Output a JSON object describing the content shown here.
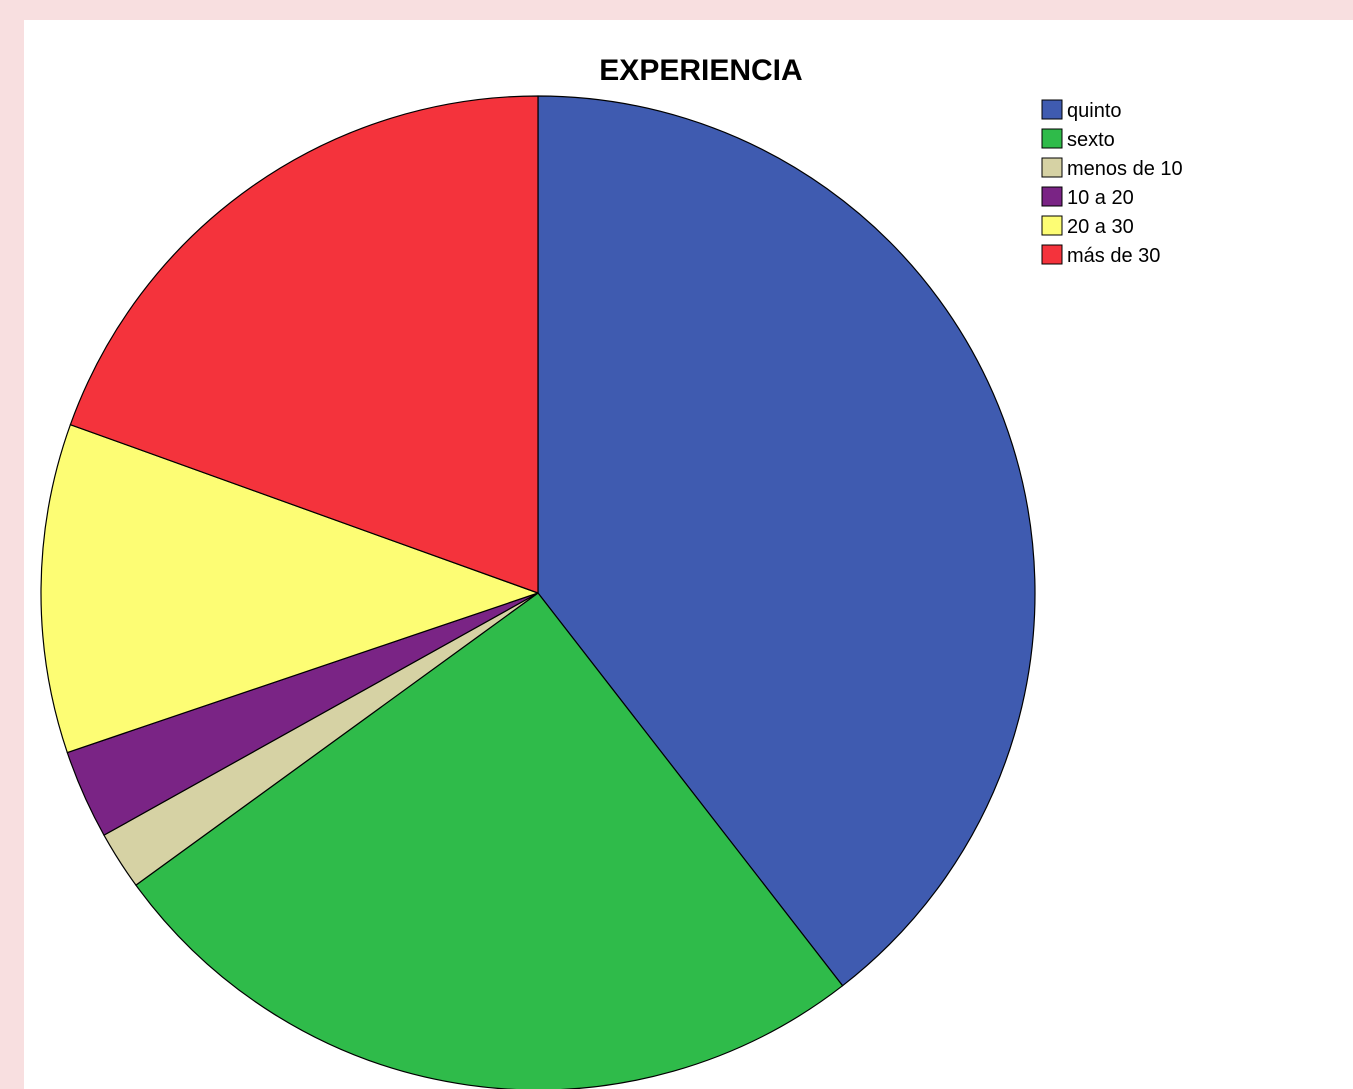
{
  "chart_data": {
    "type": "pie",
    "title": "EXPERIENCIA",
    "categories": [
      "quinto",
      "sexto",
      "menos de 10",
      "10 a 20",
      "20 a 30",
      "más de 30"
    ],
    "values": [
      39.5,
      25.5,
      1.9,
      2.9,
      10.7,
      19.5
    ],
    "colors": [
      "#3f5bb0",
      "#2fbb4a",
      "#d6d2a4",
      "#7a2485",
      "#fdfd74",
      "#f4333c"
    ],
    "start_angle_deg": 0,
    "direction": "clockwise",
    "legend_position": "top-right",
    "data_labels": false
  }
}
